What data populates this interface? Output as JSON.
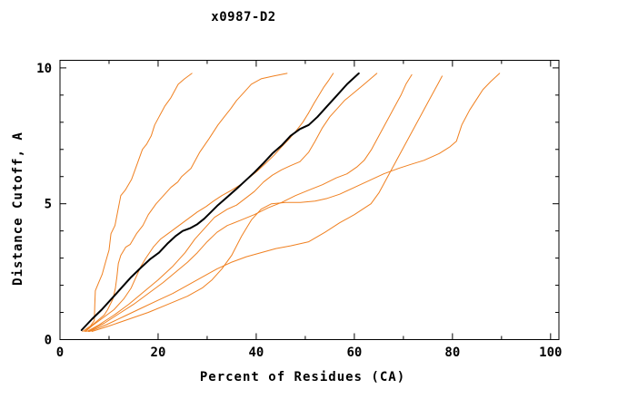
{
  "title": "x0987-D2",
  "colors": {
    "background": "#ffffff",
    "axis": "#000000",
    "orange_curve": "#f08020",
    "black_curve": "#000000"
  },
  "chart_data": {
    "type": "line",
    "title": "x0987-D2",
    "xlabel": "Percent of Residues (CA)",
    "ylabel": "Distance Cutoff, A",
    "xlim": [
      0,
      101.7
    ],
    "ylim": [
      0,
      10.28
    ],
    "x_major_ticks": [
      0,
      20,
      40,
      60,
      80,
      100
    ],
    "x_minor_ticks": [
      10,
      30,
      50,
      70,
      90
    ],
    "y_major_ticks": [
      0,
      5,
      10
    ],
    "y_minor_ticks": [
      1,
      2,
      3,
      4,
      6,
      7,
      8,
      9
    ],
    "grid": false,
    "legend_position": "none",
    "series": [
      {
        "name": "orange-curve-1",
        "color": "#f08020",
        "width": 1,
        "points": [
          [
            4.6,
            0.3
          ],
          [
            6.2,
            0.5
          ],
          [
            7.0,
            0.7
          ],
          [
            7.1,
            1.3
          ],
          [
            7.2,
            1.8
          ],
          [
            7.9,
            2.1
          ],
          [
            8.6,
            2.4
          ],
          [
            9.2,
            2.8
          ],
          [
            10.0,
            3.3
          ],
          [
            10.4,
            3.9
          ],
          [
            11.2,
            4.2
          ],
          [
            12.4,
            5.3
          ],
          [
            13.3,
            5.5
          ],
          [
            14.6,
            5.9
          ],
          [
            15.2,
            6.2
          ],
          [
            16.8,
            7.0
          ],
          [
            17.7,
            7.2
          ],
          [
            18.6,
            7.5
          ],
          [
            19.3,
            7.9
          ],
          [
            20.2,
            8.2
          ],
          [
            21.4,
            8.6
          ],
          [
            22.6,
            8.9
          ],
          [
            24.1,
            9.4
          ],
          [
            25.4,
            9.6
          ],
          [
            26.9,
            9.8
          ]
        ]
      },
      {
        "name": "orange-curve-2",
        "color": "#f08020",
        "width": 1,
        "points": [
          [
            5.0,
            0.3
          ],
          [
            7.0,
            0.6
          ],
          [
            9.0,
            0.9
          ],
          [
            9.7,
            1.1
          ],
          [
            10.8,
            1.5
          ],
          [
            11.3,
            1.9
          ],
          [
            11.6,
            2.3
          ],
          [
            11.9,
            2.8
          ],
          [
            12.4,
            3.1
          ],
          [
            13.4,
            3.4
          ],
          [
            14.3,
            3.5
          ],
          [
            15.6,
            3.9
          ],
          [
            16.9,
            4.2
          ],
          [
            18.0,
            4.6
          ],
          [
            19.6,
            5.0
          ],
          [
            21.1,
            5.3
          ],
          [
            22.6,
            5.6
          ],
          [
            24.0,
            5.8
          ],
          [
            24.8,
            6.0
          ],
          [
            26.7,
            6.3
          ],
          [
            28.5,
            6.9
          ],
          [
            30.4,
            7.4
          ],
          [
            32.2,
            7.9
          ],
          [
            33.5,
            8.2
          ],
          [
            34.8,
            8.5
          ],
          [
            36.0,
            8.8
          ],
          [
            37.5,
            9.1
          ],
          [
            39.0,
            9.4
          ],
          [
            41.0,
            9.6
          ],
          [
            43.5,
            9.7
          ],
          [
            46.3,
            9.8
          ]
        ]
      },
      {
        "name": "orange-curve-3",
        "color": "#f08020",
        "width": 1,
        "points": [
          [
            5.2,
            0.3
          ],
          [
            6.5,
            0.5
          ],
          [
            8.0,
            0.7
          ],
          [
            9.5,
            0.9
          ],
          [
            11.0,
            1.1
          ],
          [
            13.0,
            1.5
          ],
          [
            14.5,
            1.9
          ],
          [
            15.5,
            2.3
          ],
          [
            16.5,
            2.7
          ],
          [
            17.5,
            3.0
          ],
          [
            19.0,
            3.4
          ],
          [
            20.5,
            3.7
          ],
          [
            22.0,
            3.9
          ],
          [
            23.5,
            4.1
          ],
          [
            25.0,
            4.3
          ],
          [
            26.5,
            4.5
          ],
          [
            28.0,
            4.7
          ],
          [
            29.8,
            4.9
          ],
          [
            31.3,
            5.1
          ],
          [
            33.0,
            5.3
          ],
          [
            35.0,
            5.5
          ],
          [
            36.8,
            5.7
          ],
          [
            38.5,
            5.95
          ],
          [
            40.2,
            6.2
          ],
          [
            42.0,
            6.5
          ],
          [
            43.7,
            6.8
          ],
          [
            45.2,
            7.1
          ],
          [
            46.8,
            7.4
          ],
          [
            48.2,
            7.7
          ],
          [
            49.5,
            8.0
          ],
          [
            50.7,
            8.35
          ],
          [
            51.8,
            8.7
          ],
          [
            52.8,
            9.0
          ],
          [
            53.8,
            9.3
          ],
          [
            54.8,
            9.55
          ],
          [
            55.7,
            9.8
          ]
        ]
      },
      {
        "name": "orange-curve-4",
        "color": "#f08020",
        "width": 1,
        "points": [
          [
            5.5,
            0.3
          ],
          [
            8.0,
            0.55
          ],
          [
            11.0,
            0.9
          ],
          [
            14.0,
            1.3
          ],
          [
            17.0,
            1.75
          ],
          [
            20.0,
            2.2
          ],
          [
            23.0,
            2.7
          ],
          [
            25.5,
            3.2
          ],
          [
            27.5,
            3.7
          ],
          [
            29.5,
            4.1
          ],
          [
            31.5,
            4.5
          ],
          [
            34.1,
            4.8
          ],
          [
            36.0,
            4.95
          ],
          [
            37.8,
            5.2
          ],
          [
            39.6,
            5.45
          ],
          [
            41.5,
            5.8
          ],
          [
            43.3,
            6.05
          ],
          [
            45.2,
            6.25
          ],
          [
            47.0,
            6.4
          ],
          [
            48.9,
            6.55
          ],
          [
            50.7,
            6.9
          ],
          [
            52.0,
            7.3
          ],
          [
            53.5,
            7.8
          ],
          [
            55.0,
            8.2
          ],
          [
            56.5,
            8.5
          ],
          [
            58.0,
            8.8
          ],
          [
            60.0,
            9.1
          ],
          [
            62.0,
            9.4
          ],
          [
            63.3,
            9.6
          ],
          [
            64.6,
            9.8
          ]
        ]
      },
      {
        "name": "orange-curve-5",
        "color": "#f08020",
        "width": 1,
        "points": [
          [
            5.8,
            0.3
          ],
          [
            9.0,
            0.6
          ],
          [
            12.0,
            0.95
          ],
          [
            15.0,
            1.3
          ],
          [
            18.0,
            1.7
          ],
          [
            21.0,
            2.1
          ],
          [
            24.0,
            2.55
          ],
          [
            26.0,
            2.85
          ],
          [
            28.0,
            3.2
          ],
          [
            30.0,
            3.6
          ],
          [
            32.0,
            3.95
          ],
          [
            34.1,
            4.2
          ],
          [
            36.9,
            4.4
          ],
          [
            39.6,
            4.6
          ],
          [
            42.4,
            4.85
          ],
          [
            45.2,
            5.05
          ],
          [
            48.0,
            5.3
          ],
          [
            50.7,
            5.5
          ],
          [
            53.5,
            5.7
          ],
          [
            56.3,
            5.95
          ],
          [
            58.5,
            6.1
          ],
          [
            60.5,
            6.35
          ],
          [
            62.0,
            6.6
          ],
          [
            63.5,
            7.0
          ],
          [
            65.0,
            7.5
          ],
          [
            66.5,
            8.0
          ],
          [
            68.0,
            8.5
          ],
          [
            69.5,
            9.0
          ],
          [
            70.5,
            9.4
          ],
          [
            71.7,
            9.75
          ]
        ]
      },
      {
        "name": "orange-curve-6",
        "color": "#f08020",
        "width": 1,
        "points": [
          [
            6.0,
            0.3
          ],
          [
            9.5,
            0.55
          ],
          [
            13.0,
            0.85
          ],
          [
            16.5,
            1.15
          ],
          [
            20.0,
            1.45
          ],
          [
            23.0,
            1.7
          ],
          [
            26.0,
            2.0
          ],
          [
            29.0,
            2.3
          ],
          [
            32.0,
            2.6
          ],
          [
            35.0,
            2.85
          ],
          [
            38.0,
            3.05
          ],
          [
            41.0,
            3.2
          ],
          [
            44.0,
            3.35
          ],
          [
            47.0,
            3.45
          ],
          [
            50.7,
            3.6
          ],
          [
            54.0,
            3.95
          ],
          [
            57.0,
            4.3
          ],
          [
            60.0,
            4.6
          ],
          [
            63.4,
            5.0
          ],
          [
            65.0,
            5.4
          ],
          [
            66.5,
            5.9
          ],
          [
            68.0,
            6.4
          ],
          [
            69.5,
            6.9
          ],
          [
            71.0,
            7.4
          ],
          [
            72.5,
            7.9
          ],
          [
            74.0,
            8.4
          ],
          [
            75.5,
            8.9
          ],
          [
            77.0,
            9.4
          ],
          [
            77.9,
            9.7
          ]
        ]
      },
      {
        "name": "orange-curve-7",
        "color": "#f08020",
        "width": 1,
        "points": [
          [
            6.5,
            0.3
          ],
          [
            10.0,
            0.5
          ],
          [
            14.0,
            0.75
          ],
          [
            18.0,
            1.0
          ],
          [
            22.0,
            1.3
          ],
          [
            26.0,
            1.6
          ],
          [
            29.0,
            1.9
          ],
          [
            31.0,
            2.2
          ],
          [
            33.0,
            2.6
          ],
          [
            35.0,
            3.1
          ],
          [
            37.0,
            3.8
          ],
          [
            39.0,
            4.4
          ],
          [
            41.0,
            4.8
          ],
          [
            43.1,
            5.0
          ],
          [
            46.0,
            5.05
          ],
          [
            49.0,
            5.05
          ],
          [
            52.0,
            5.1
          ],
          [
            54.5,
            5.2
          ],
          [
            57.0,
            5.35
          ],
          [
            60.0,
            5.6
          ],
          [
            63.0,
            5.85
          ],
          [
            66.0,
            6.1
          ],
          [
            69.0,
            6.3
          ],
          [
            71.5,
            6.45
          ],
          [
            74.2,
            6.6
          ],
          [
            77.3,
            6.85
          ],
          [
            79.5,
            7.1
          ],
          [
            80.8,
            7.3
          ],
          [
            81.9,
            7.9
          ],
          [
            83.5,
            8.45
          ],
          [
            85.3,
            8.95
          ],
          [
            86.2,
            9.2
          ],
          [
            87.8,
            9.5
          ],
          [
            89.6,
            9.8
          ]
        ]
      },
      {
        "name": "black-curve",
        "color": "#000000",
        "width": 2,
        "points": [
          [
            4.4,
            0.35
          ],
          [
            6.5,
            0.75
          ],
          [
            8.5,
            1.1
          ],
          [
            10.5,
            1.5
          ],
          [
            12.5,
            1.9
          ],
          [
            14.5,
            2.3
          ],
          [
            16.5,
            2.65
          ],
          [
            18.3,
            2.95
          ],
          [
            20.2,
            3.2
          ],
          [
            22.0,
            3.55
          ],
          [
            23.5,
            3.8
          ],
          [
            25.0,
            4.0
          ],
          [
            26.5,
            4.1
          ],
          [
            28.0,
            4.25
          ],
          [
            29.4,
            4.45
          ],
          [
            30.8,
            4.7
          ],
          [
            32.2,
            4.95
          ],
          [
            34.1,
            5.25
          ],
          [
            36.0,
            5.55
          ],
          [
            37.8,
            5.85
          ],
          [
            39.6,
            6.15
          ],
          [
            41.5,
            6.5
          ],
          [
            43.3,
            6.85
          ],
          [
            45.2,
            7.15
          ],
          [
            47.0,
            7.5
          ],
          [
            48.9,
            7.75
          ],
          [
            50.7,
            7.9
          ],
          [
            52.5,
            8.2
          ],
          [
            54.5,
            8.6
          ],
          [
            56.5,
            9.0
          ],
          [
            58.5,
            9.4
          ],
          [
            60.9,
            9.8
          ]
        ]
      }
    ]
  }
}
